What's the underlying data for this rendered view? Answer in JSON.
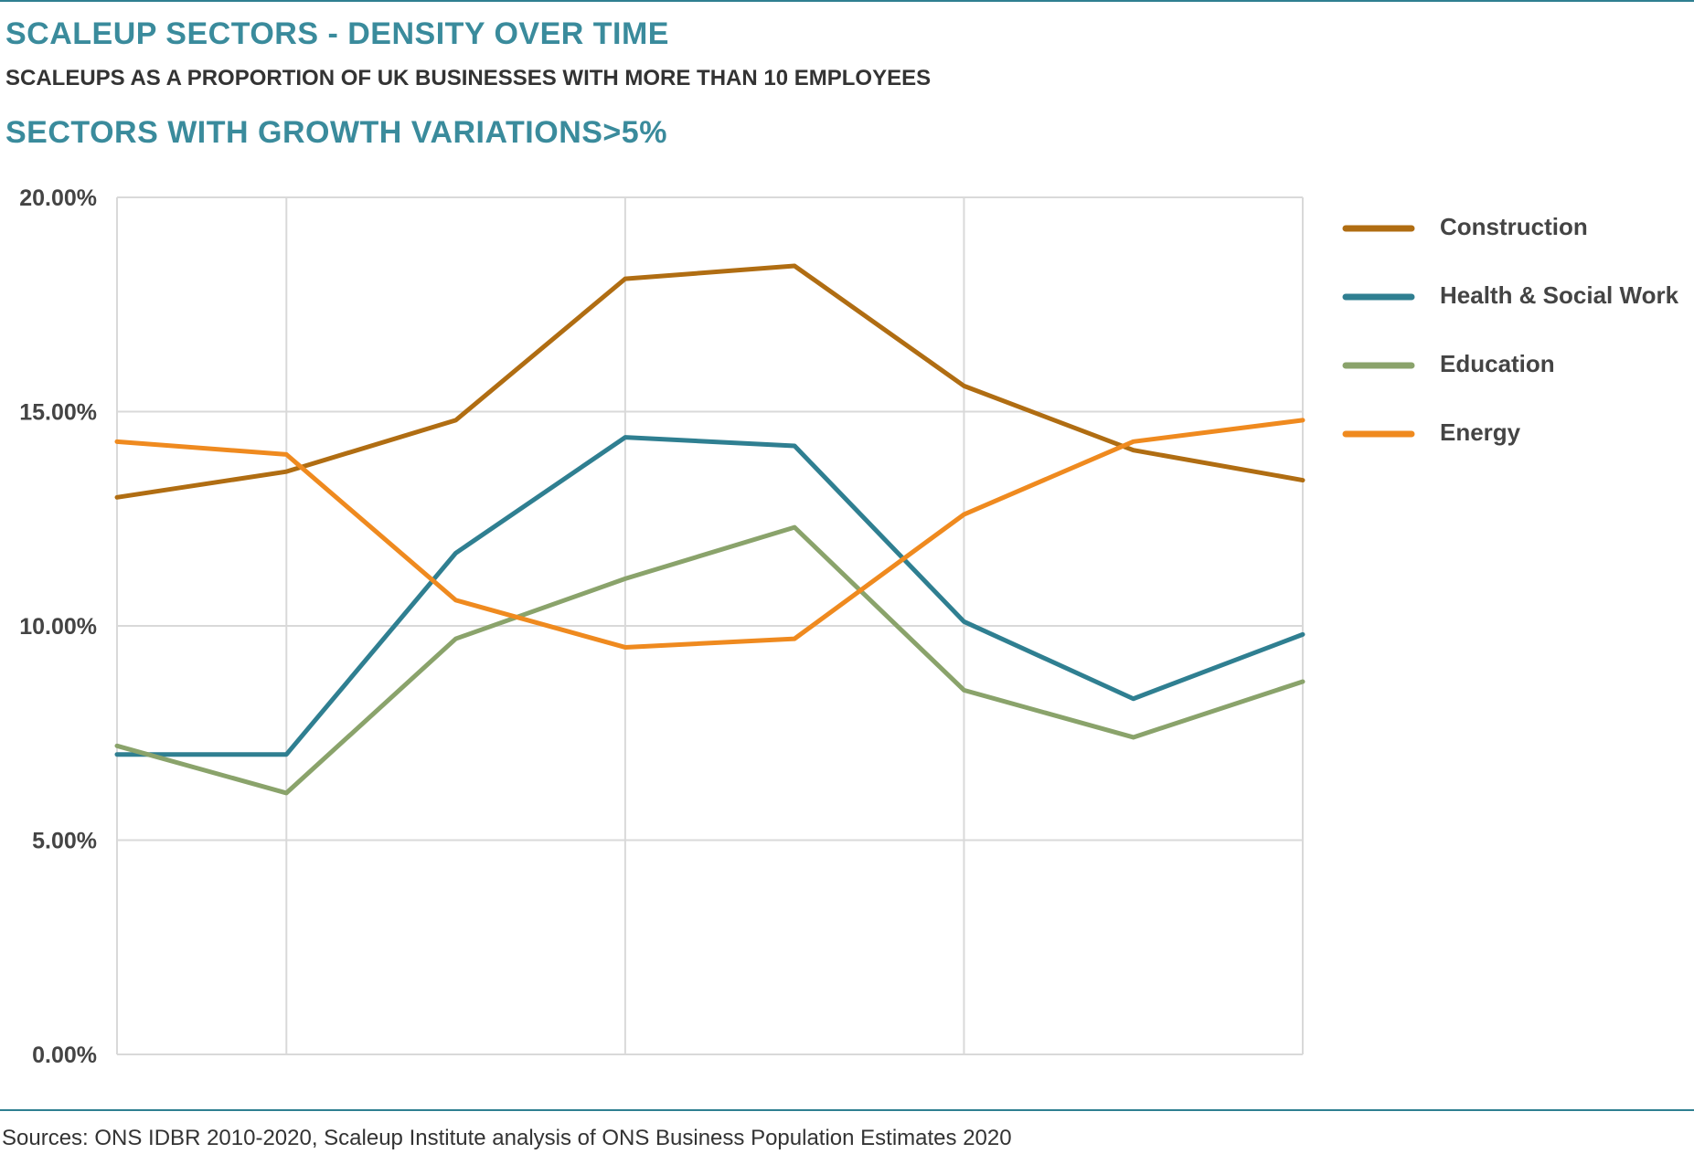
{
  "header": {
    "title": "SCALEUP SECTORS - DENSITY OVER TIME",
    "subtitle": "SCALEUPS AS A PROPORTION OF UK BUSINESSES WITH MORE THAN 10 EMPLOYEES",
    "section_title": "SECTORS WITH GROWTH VARIATIONS>5%"
  },
  "footer": {
    "source": "Sources: ONS IDBR 2010-2020, Scaleup Institute analysis of ONS Business Population Estimates 2020"
  },
  "chart_data": {
    "type": "line",
    "x": [
      0,
      1,
      2,
      3,
      4,
      5,
      6,
      7
    ],
    "ylim": [
      0,
      20
    ],
    "y_ticks": [
      0,
      5,
      10,
      15,
      20
    ],
    "y_tick_labels": [
      "0.00%",
      "5.00%",
      "10.00%",
      "15.00%",
      "20.00%"
    ],
    "grid": true,
    "legend_position": "right",
    "series": [
      {
        "name": "Construction",
        "color": "#b06d12",
        "values": [
          13.0,
          13.6,
          14.8,
          18.1,
          18.4,
          15.6,
          14.1,
          13.4
        ]
      },
      {
        "name": "Health & Social Work",
        "color": "#2f7f91",
        "values": [
          7.0,
          7.0,
          11.7,
          14.4,
          14.2,
          10.1,
          8.3,
          9.8
        ]
      },
      {
        "name": "Education",
        "color": "#8aa36b",
        "values": [
          7.2,
          6.1,
          9.7,
          11.1,
          12.3,
          8.5,
          7.4,
          8.7
        ]
      },
      {
        "name": "Energy",
        "color": "#ef8a1f",
        "values": [
          14.3,
          14.0,
          10.6,
          9.5,
          9.7,
          12.6,
          14.3,
          14.8
        ]
      }
    ]
  }
}
